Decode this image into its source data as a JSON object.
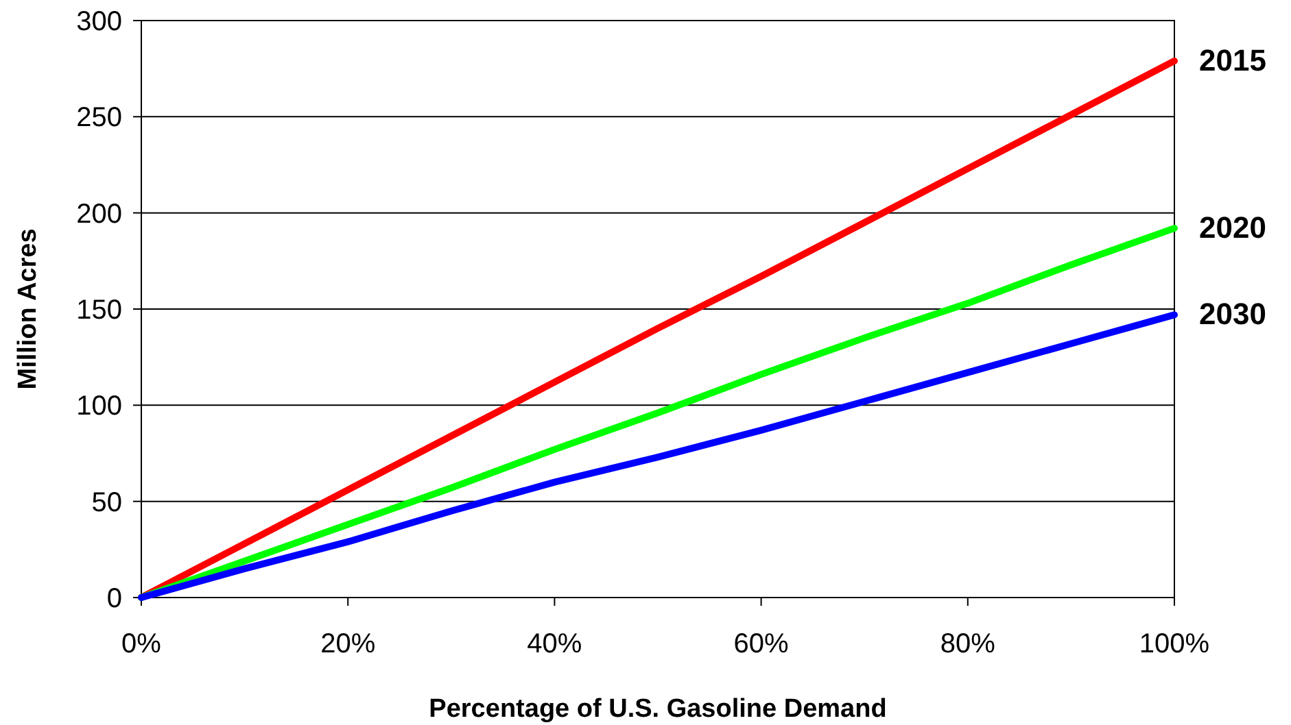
{
  "chart_data": {
    "type": "line",
    "xlabel": "Percentage of U.S. Gasoline Demand",
    "ylabel": "Million Acres",
    "x": [
      0,
      10,
      20,
      30,
      40,
      50,
      60,
      70,
      80,
      90,
      100
    ],
    "series": [
      {
        "name": "2015",
        "color": "#ff0000",
        "values": [
          0,
          28,
          56,
          84,
          112,
          140,
          167,
          195,
          223,
          251,
          279
        ]
      },
      {
        "name": "2020",
        "color": "#00ff00",
        "values": [
          0,
          19,
          38,
          57,
          77,
          96,
          116,
          135,
          153,
          173,
          192
        ]
      },
      {
        "name": "2030",
        "color": "#0000ff",
        "values": [
          0,
          15,
          29,
          45,
          60,
          73,
          87,
          102,
          117,
          132,
          147
        ]
      }
    ],
    "xlim": [
      0,
      100
    ],
    "xticks": [
      {
        "value": 0,
        "label": "0%"
      },
      {
        "value": 20,
        "label": "20%"
      },
      {
        "value": 40,
        "label": "40%"
      },
      {
        "value": 60,
        "label": "60%"
      },
      {
        "value": 80,
        "label": "80%"
      },
      {
        "value": 100,
        "label": "100%"
      }
    ],
    "ylim": [
      0,
      300
    ],
    "yticks": [
      0,
      50,
      100,
      150,
      200,
      250,
      300
    ],
    "grid": "y",
    "marker": "none",
    "line_style": "solid"
  }
}
